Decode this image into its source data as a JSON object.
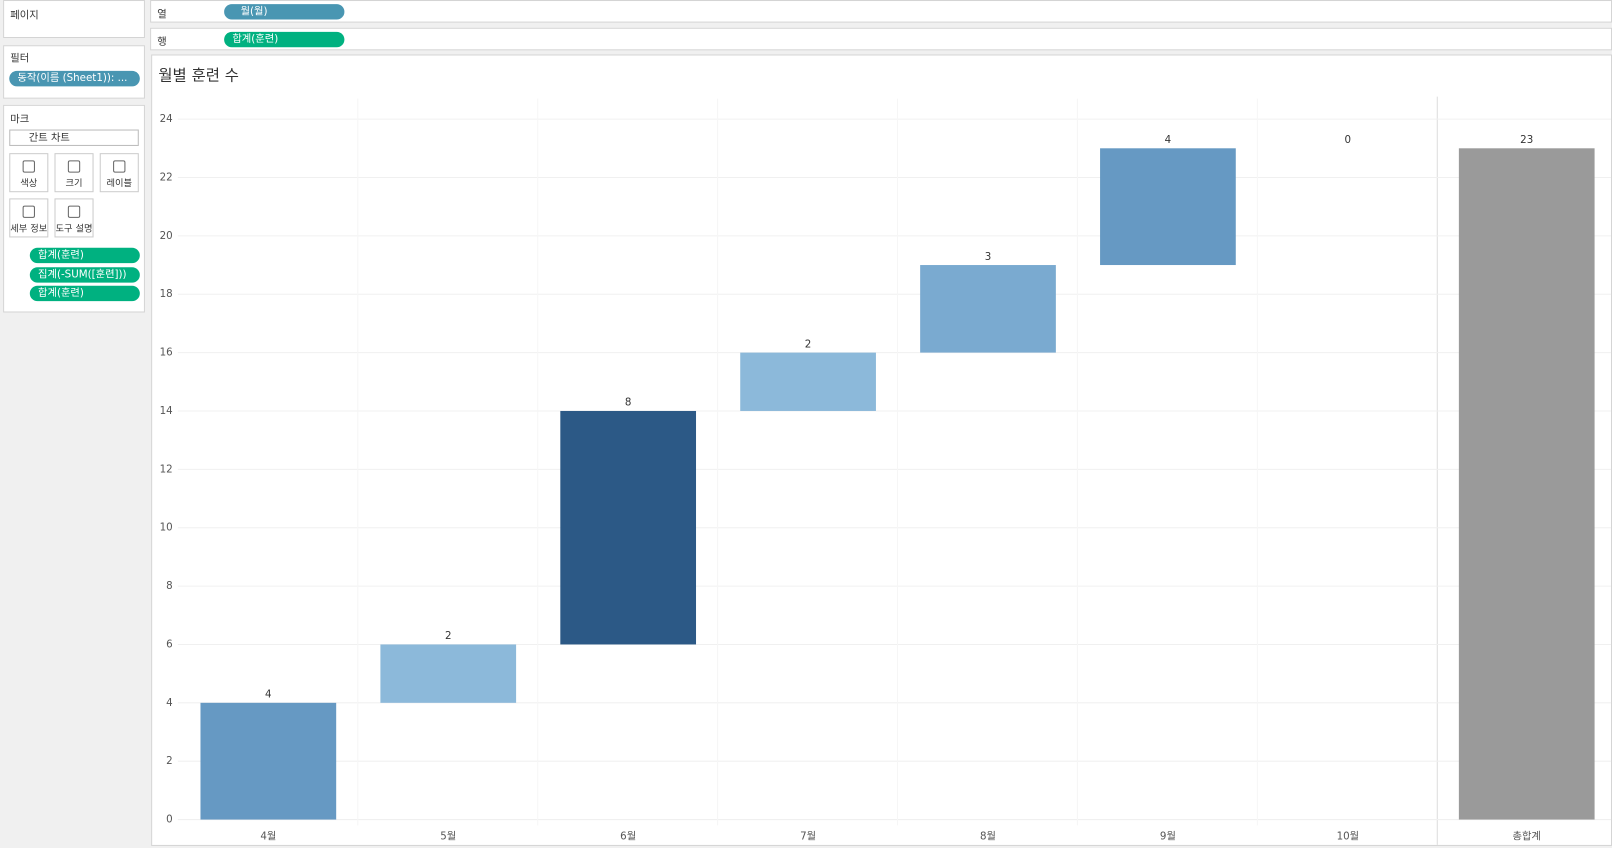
{
  "sidebar": {
    "pages": "페이지",
    "filters": {
      "title": "필터",
      "pill": "동작(이름 (Sheet1)): ..."
    },
    "marks": {
      "title": "마크",
      "mark_type": "간트 차트",
      "buttons": [
        "색상",
        "크기",
        "레이블",
        "세부 정보",
        "도구 설명"
      ],
      "pills": [
        "합계(훈련)",
        "집계(-SUM([훈련]))",
        "합계(훈련)"
      ]
    }
  },
  "shelves": {
    "columns": {
      "label": "열",
      "pill": "월(월)"
    },
    "rows": {
      "label": "행",
      "pill": "합계(훈련)"
    }
  },
  "chart_data": {
    "type": "waterfall",
    "title": "월별 훈련 수",
    "categories": [
      "4월",
      "5월",
      "6월",
      "7월",
      "8월",
      "9월",
      "10월"
    ],
    "values": [
      4,
      2,
      8,
      2,
      3,
      4,
      0
    ],
    "colors": [
      "#6699c3",
      "#8cb9da",
      "#2c5986",
      "#8cb9da",
      "#7aaad0",
      "#6699c3",
      "#a6cbe4"
    ],
    "total": {
      "label": "총합계",
      "value": 23,
      "color": "#9a9a9a"
    },
    "ylim": [
      -0.2,
      24.7
    ],
    "yticks": [
      0,
      2,
      4,
      6,
      8,
      10,
      12,
      14,
      16,
      18,
      20,
      22,
      24
    ],
    "grid": true
  }
}
